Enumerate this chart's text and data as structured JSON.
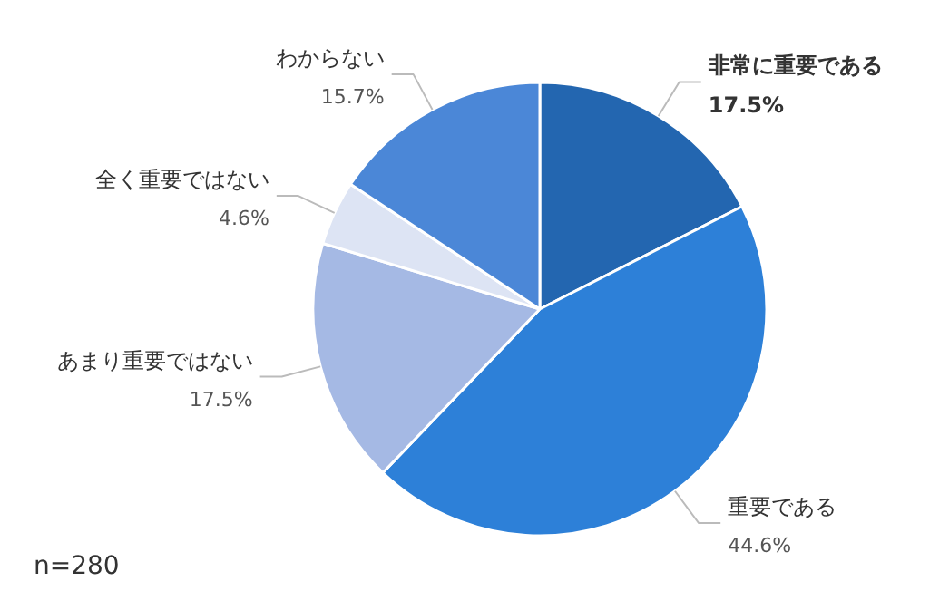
{
  "chart_data": {
    "type": "pie",
    "categories": [
      "非常に重要である",
      "重要である",
      "あまり重要ではない",
      "全く重要ではない",
      "わからない"
    ],
    "values": [
      17.5,
      44.6,
      17.5,
      4.6,
      15.7
    ],
    "value_labels": [
      "17.5%",
      "44.6%",
      "17.5%",
      "4.6%",
      "15.7%"
    ],
    "colors": [
      "#2366b0",
      "#2d80d8",
      "#a5b9e4",
      "#dde4f4",
      "#4b87d7"
    ],
    "annotations": [
      "n=280"
    ]
  }
}
